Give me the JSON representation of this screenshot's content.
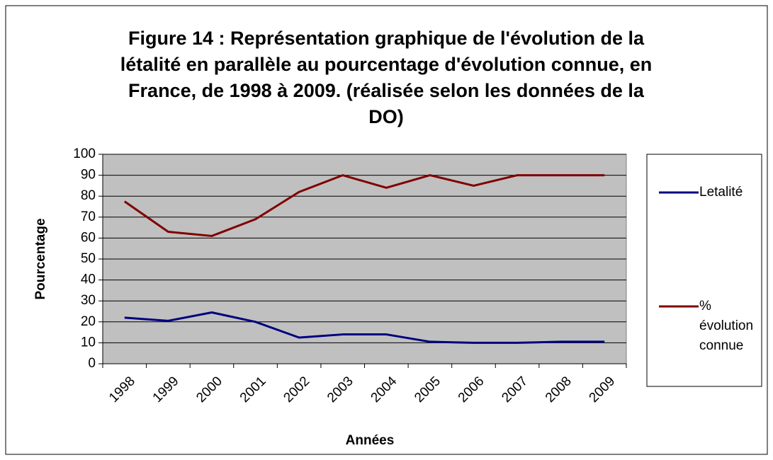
{
  "chart_data": {
    "type": "line",
    "title": "Figure 14 : Représentation graphique de l'évolution de la létalité en parallèle au pourcentage d'évolution connue, en France, de 1998 à 2009. (réalisée selon les données de la DO)",
    "xlabel": "Années",
    "ylabel": "Pourcentage",
    "categories": [
      "1998",
      "1999",
      "2000",
      "2001",
      "2002",
      "2003",
      "2004",
      "2005",
      "2006",
      "2007",
      "2008",
      "2009"
    ],
    "series": [
      {
        "name": "Letalité",
        "color": "#000080",
        "values": [
          22,
          20.5,
          24.5,
          20,
          12.5,
          14,
          14,
          10.5,
          10,
          10,
          10.5,
          10.5
        ]
      },
      {
        "name": "% évolution connue",
        "color": "#800000",
        "values": [
          77.5,
          63,
          61,
          69,
          82,
          90,
          84,
          90,
          85,
          90,
          90,
          90
        ]
      }
    ],
    "ylim": [
      0,
      100
    ],
    "yticks": [
      0,
      10,
      20,
      30,
      40,
      50,
      60,
      70,
      80,
      90,
      100
    ],
    "grid": true,
    "plot_background": "#c0c0c0",
    "legend": "right"
  }
}
